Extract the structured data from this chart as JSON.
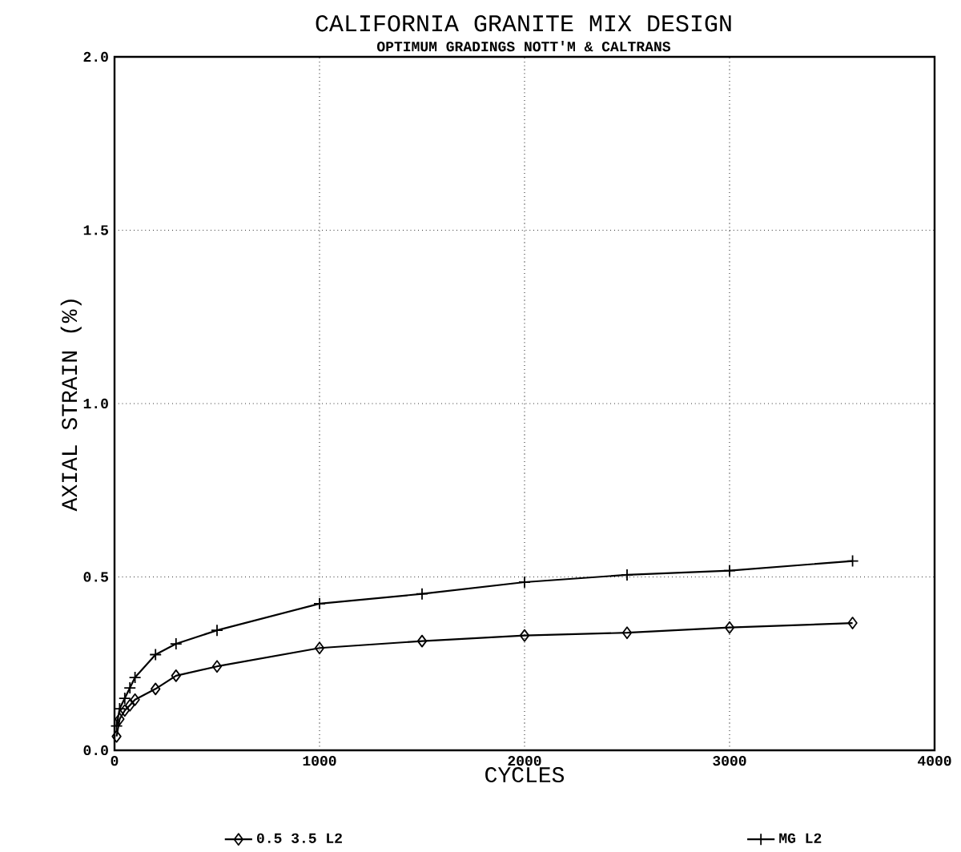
{
  "chart_data": {
    "type": "line",
    "title": "CALIFORNIA GRANITE MIX DESIGN",
    "subtitle": "OPTIMUM GRADINGS NOTT'M & CALTRANS",
    "xlabel": "CYCLES",
    "ylabel": "AXIAL STRAIN (%)",
    "xlim": [
      0,
      4000
    ],
    "xticks": [
      0,
      1000,
      2000,
      3000,
      4000
    ],
    "ylim": [
      0,
      2
    ],
    "yticks": [
      {
        "value": 0,
        "label": "0.0"
      },
      {
        "value": 0.5,
        "label": "0.5"
      },
      {
        "value": 1,
        "label": "1.0"
      },
      {
        "value": 1.5,
        "label": "1.5"
      },
      {
        "value": 2,
        "label": "2.0"
      }
    ],
    "grid": true,
    "legend": "bottom",
    "series": [
      {
        "name": "0.5 3.5 L2",
        "color": "#000000",
        "marker": "diamond",
        "x": [
          10,
          25,
          50,
          75,
          100,
          200,
          300,
          500,
          1000,
          1500,
          2000,
          2500,
          3000,
          3600
        ],
        "values": [
          0.04,
          0.09,
          0.115,
          0.13,
          0.146,
          0.177,
          0.215,
          0.242,
          0.295,
          0.315,
          0.331,
          0.339,
          0.354,
          0.367
        ]
      },
      {
        "name": "MG L2",
        "color": "#000000",
        "marker": "cross",
        "x": [
          10,
          25,
          50,
          75,
          100,
          200,
          300,
          500,
          1000,
          1500,
          2000,
          2500,
          3000,
          3600
        ],
        "values": [
          0.07,
          0.12,
          0.15,
          0.18,
          0.21,
          0.276,
          0.307,
          0.346,
          0.423,
          0.451,
          0.485,
          0.506,
          0.518,
          0.546
        ]
      }
    ]
  }
}
